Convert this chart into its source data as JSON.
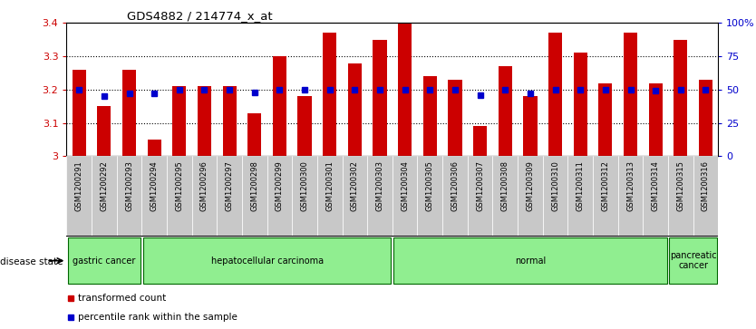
{
  "title": "GDS4882 / 214774_x_at",
  "samples": [
    "GSM1200291",
    "GSM1200292",
    "GSM1200293",
    "GSM1200294",
    "GSM1200295",
    "GSM1200296",
    "GSM1200297",
    "GSM1200298",
    "GSM1200299",
    "GSM1200300",
    "GSM1200301",
    "GSM1200302",
    "GSM1200303",
    "GSM1200304",
    "GSM1200305",
    "GSM1200306",
    "GSM1200307",
    "GSM1200308",
    "GSM1200309",
    "GSM1200310",
    "GSM1200311",
    "GSM1200312",
    "GSM1200313",
    "GSM1200314",
    "GSM1200315",
    "GSM1200316"
  ],
  "bar_values": [
    3.26,
    3.15,
    3.26,
    3.05,
    3.21,
    3.21,
    3.21,
    3.13,
    3.3,
    3.18,
    3.37,
    3.28,
    3.35,
    3.4,
    3.24,
    3.23,
    3.09,
    3.27,
    3.18,
    3.37,
    3.31,
    3.22,
    3.37,
    3.22,
    3.35,
    3.23
  ],
  "percentile_values": [
    50,
    45,
    47,
    47,
    50,
    50,
    50,
    48,
    50,
    50,
    50,
    50,
    50,
    50,
    50,
    50,
    46,
    50,
    47,
    50,
    50,
    50,
    50,
    49,
    50,
    50
  ],
  "bar_color": "#cc0000",
  "percentile_color": "#0000cc",
  "ymin": 3.0,
  "ymax": 3.4,
  "yticks_left": [
    3.0,
    3.1,
    3.2,
    3.3,
    3.4
  ],
  "ytick_labels_left": [
    "3",
    "3.1",
    "3.2",
    "3.3",
    "3.4"
  ],
  "yticks_right": [
    0,
    25,
    50,
    75,
    100
  ],
  "ytick_labels_right": [
    "0",
    "25",
    "50",
    "75",
    "100%"
  ],
  "grid_yticks": [
    3.1,
    3.2,
    3.3
  ],
  "group_bounds": [
    [
      0,
      3,
      "gastric cancer"
    ],
    [
      3,
      13,
      "hepatocellular carcinoma"
    ],
    [
      13,
      24,
      "normal"
    ],
    [
      24,
      26,
      "pancreatic\ncancer"
    ]
  ],
  "group_color": "#90ee90",
  "group_border_color": "#006600",
  "legend_red_label": "transformed count",
  "legend_blue_label": "percentile rank within the sample",
  "disease_state_label": "disease state",
  "xtick_bg": "#c8c8c8"
}
